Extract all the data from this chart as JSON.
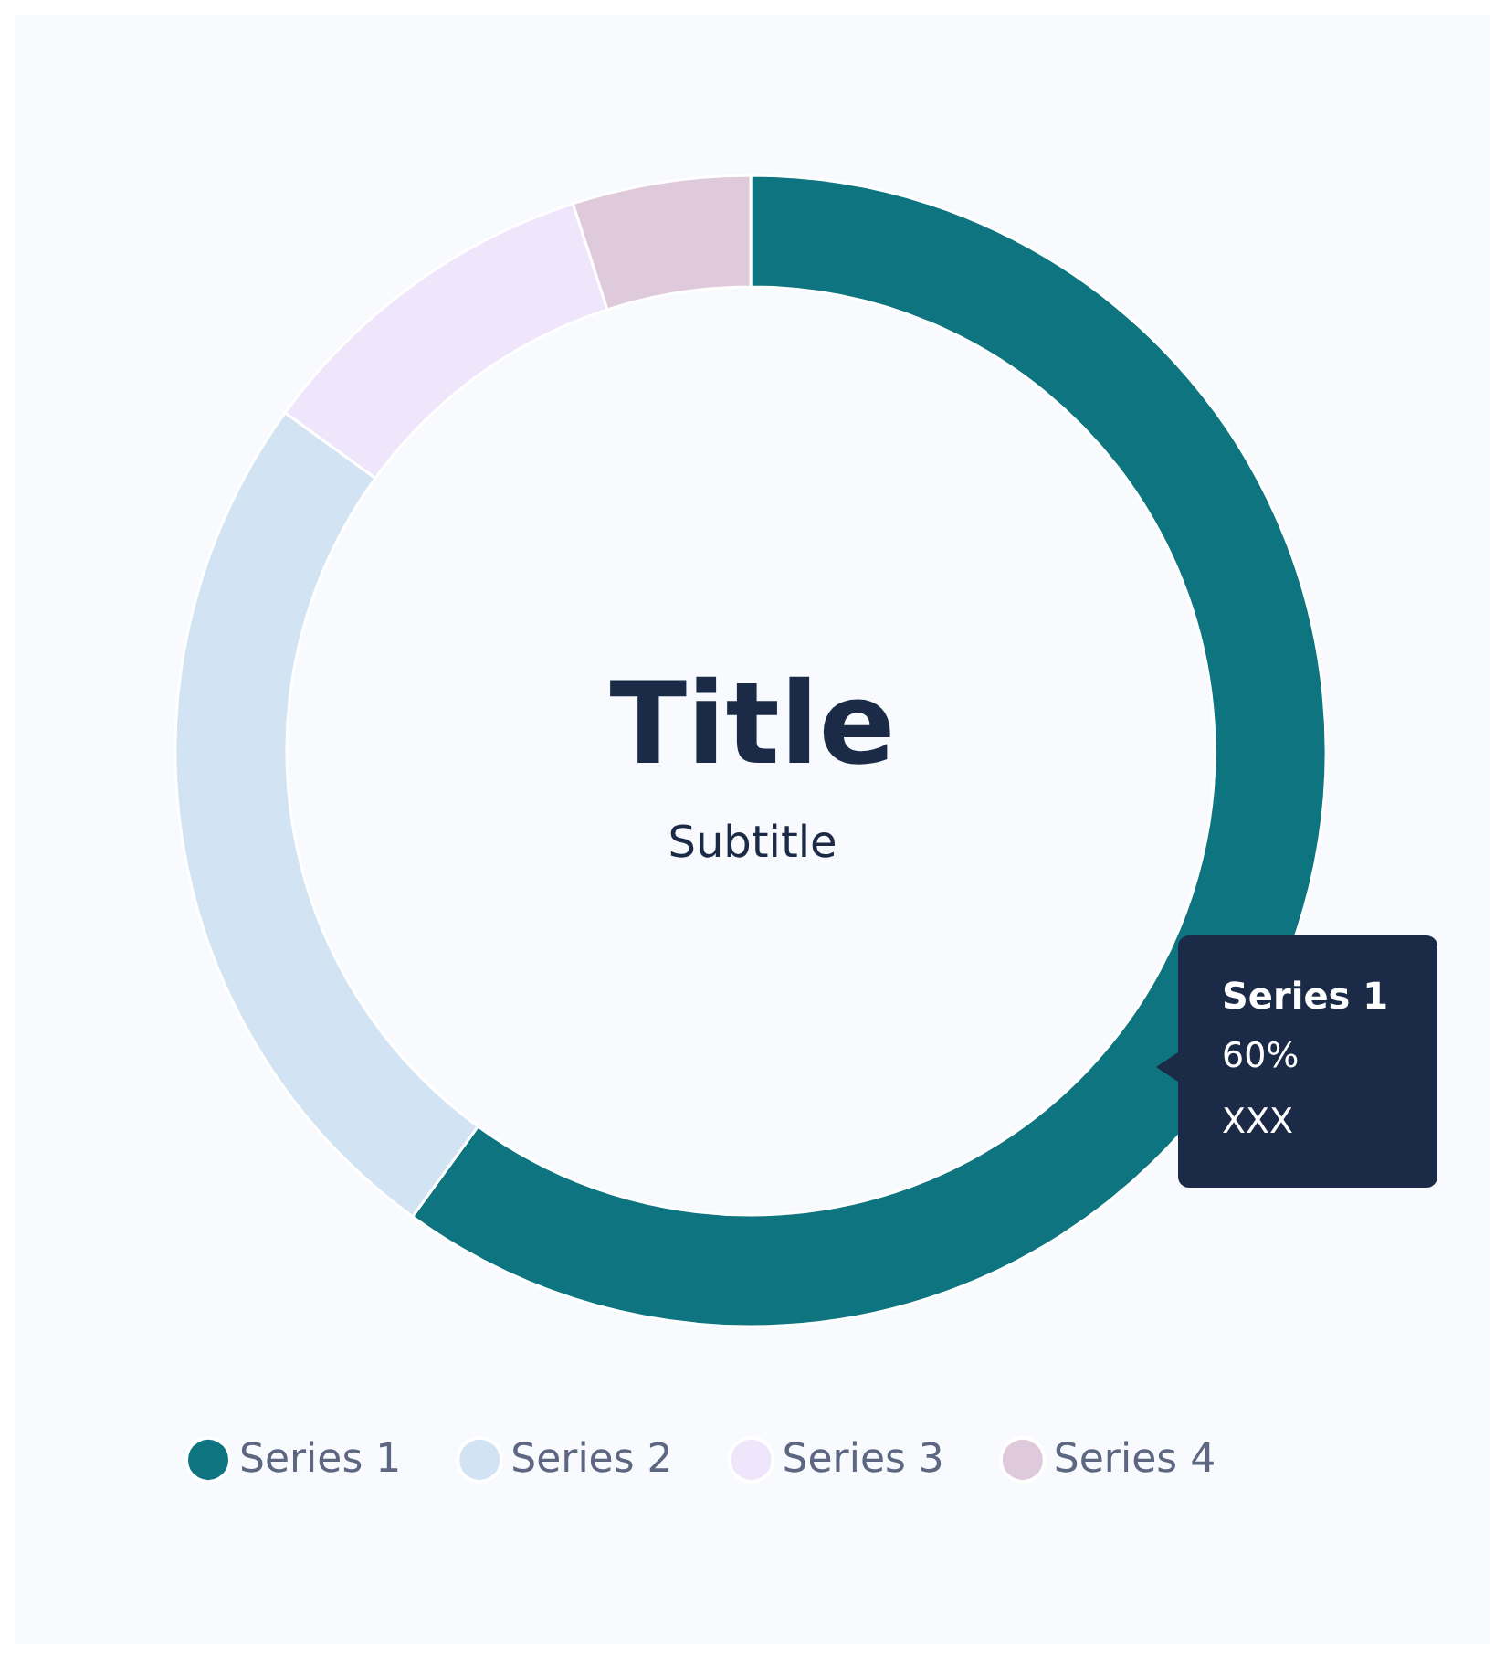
{
  "chart_data": {
    "type": "donut",
    "title": "Title",
    "subtitle": "Subtitle",
    "categories": [
      "Series 1",
      "Series 2",
      "Series 3",
      "Series 4"
    ],
    "values": [
      60,
      25,
      10,
      5
    ],
    "colors": [
      "#0e7580",
      "#d2e3f3",
      "#f0e6fc",
      "#dfcadc"
    ],
    "value_labels": [
      "60%",
      null,
      null,
      null
    ],
    "annotations": [
      "XXX"
    ],
    "legend": "bottom"
  }
}
